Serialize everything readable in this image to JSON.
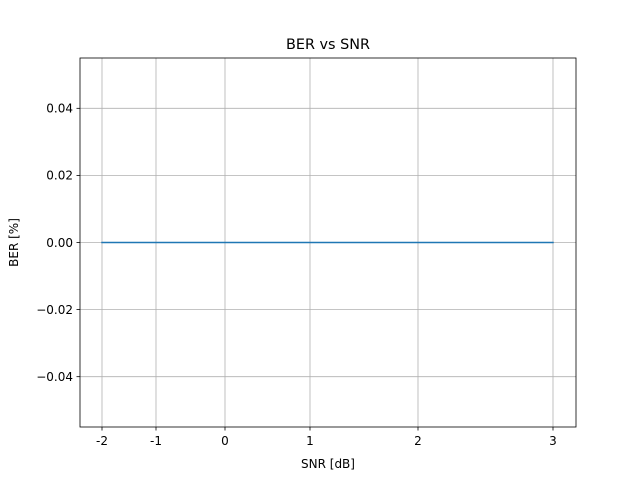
{
  "chart_data": {
    "type": "line",
    "title": "BER vs SNR",
    "xlabel": "SNR [dB]",
    "ylabel": "BER [%]",
    "x_ticks": [
      -2,
      -1,
      0,
      1,
      2,
      3
    ],
    "x_tick_labels": [
      "-2",
      "-1",
      "0",
      "1",
      "2",
      "3"
    ],
    "y_ticks": [
      -0.04,
      -0.02,
      0.0,
      0.02,
      0.04
    ],
    "y_tick_labels": [
      "−0.04",
      "−0.02",
      "0.00",
      "0.02",
      "0.04"
    ],
    "ylim": [
      -0.055,
      0.055
    ],
    "grid": true,
    "series": [
      {
        "color": "#1f77b4",
        "x": [
          -2,
          -1,
          0,
          1,
          2,
          3
        ],
        "y": [
          0,
          0,
          0,
          0,
          0,
          0
        ]
      }
    ]
  }
}
